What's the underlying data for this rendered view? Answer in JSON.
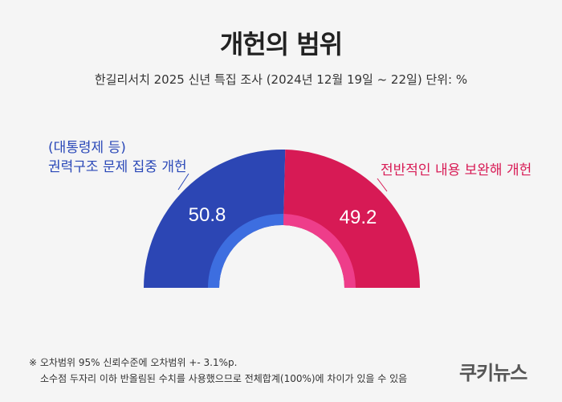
{
  "header": {
    "title": "개헌의 범위",
    "subtitle": "한길리서치 2025 신년 특집 조사 (2024년 12월 19일 ~ 22일) 단위: %"
  },
  "chart_data": {
    "type": "pie",
    "variant": "half-donut",
    "series": [
      {
        "name": "(대통령제 등) 권력구조 문제 집중 개헌",
        "value": 50.8,
        "color": "#2c46b4"
      },
      {
        "name": "전반적인 내용 보완해 개헌",
        "value": 49.2,
        "color": "#d71a55"
      }
    ],
    "labels": {
      "left_line1": "(대통령제 등)",
      "left_line2": "권력구조 문제 집중 개헌",
      "right": "전반적인 내용 보완해 개헌",
      "value_left": "50.8",
      "value_right": "49.2"
    }
  },
  "footnote": {
    "line1": "※ 오차범위 95% 신뢰수준에 오차범위 +- 3.1%p.",
    "line2": "소수점 두자리 이하 반올림된 수치를 사용했으므로 전체합계(100%)에 차이가 있을 수 있음"
  },
  "brand": {
    "logo": "쿠키뉴스"
  }
}
